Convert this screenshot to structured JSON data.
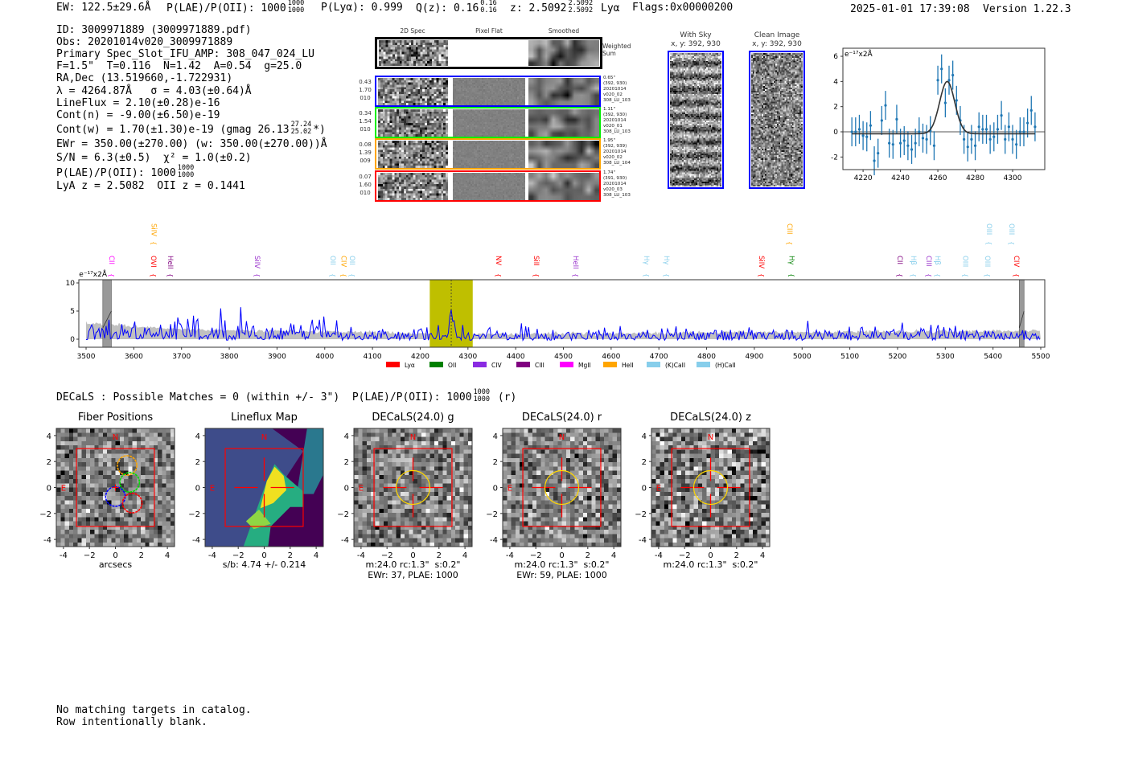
{
  "header": {
    "ew": "EW: 122.5±29.6Å",
    "plae_label": "P(LAE)/P(OII): 1000",
    "plae_hi": "1000",
    "plae_lo": "1000",
    "plya": "P(Lyα): 0.999",
    "qz_label": "Q(z): 0.16",
    "qz_hi": "0.16",
    "qz_lo": "0.16",
    "z_label": "z: 2.5092",
    "z_hi": "2.5092",
    "z_lo": "2.5092",
    "z_line": "Lyα",
    "flags": "Flags:0x00000200",
    "datetime": "2025-01-01 17:39:08",
    "version": "Version 1.22.3"
  },
  "info": {
    "id": "ID: 3009971889 (3009971889.pdf)",
    "obs": "Obs: 20201014v020_3009971889",
    "primary": "Primary Spec_Slot_IFU_AMP: 308_047_024_LU",
    "fiber": "F=1.5\"  T=0.116  N=1.42  A=0.54  g=25.0",
    "radec": "RA,Dec (13.519660,-1.722931)",
    "lambda": "λ = 4264.87Å   σ = 4.03(±0.64)Å",
    "lineflux": "LineFlux = 2.10(±0.28)e-16",
    "contn": "Cont(n) = -9.00(±6.50)e-19",
    "contw": "Cont(w) = 1.70(±1.30)e-19 (gmag 26.13",
    "gmag_hi": "27.24",
    "gmag_lo": "25.02",
    "contw_end": "*)",
    "ewr": "EWr = 350.00(±270.00) (w: 350.00(±270.00))Å",
    "sn": "S/N = 6.3(±0.5)  χ² = 1.0(±0.2)",
    "plae": "P(LAE)/P(OII): 1000",
    "plae_hi": "1000",
    "plae_lo": "1000",
    "z": "LyA z = 2.5082  OII z = 0.1441"
  },
  "spec2d": {
    "col_headers": [
      "2D Spec",
      "Pixel Flat",
      "Smoothed"
    ],
    "weighted_label": "Weighted\nSum",
    "rows": [
      {
        "color": "#0000ff",
        "left": "0.43\n1.70\n010",
        "right": "0.65\"\n(392, 930)\n20201014\nv020_02\n308_LU_103"
      },
      {
        "color": "#00ee00",
        "left": "0.34\n1.54\n010",
        "right": "1.11\"\n(392, 930)\n20201014\nv020_01\n308_LU_103"
      },
      {
        "color": "#ffa500",
        "left": "0.08\n1.39\n009",
        "right": "1.95\"\n(392, 939)\n20201014\nv020_02\n308_LU_104"
      },
      {
        "color": "#ff0000",
        "left": "0.07\n1.60\n010",
        "right": "1.74\"\n(391, 930)\n20201014\nv020_03\n308_LU_103"
      }
    ]
  },
  "cutouts": {
    "with_sky": "With Sky\nx, y: 392, 930",
    "clean": "Clean Image\nx, y: 392, 930"
  },
  "chart_data": [
    {
      "type": "scatter",
      "title": "",
      "unit_label": "e⁻¹⁷x2Å",
      "xlim": [
        4209.2,
        4317.2
      ],
      "ylim": [
        -3.0,
        6.64
      ],
      "xticks": [
        4220,
        4240,
        4260,
        4280,
        4300
      ],
      "yticks": [
        -2,
        0,
        2,
        4,
        6
      ],
      "x": [
        4214,
        4216,
        4218,
        4220,
        4222,
        4224,
        4226,
        4228,
        4230,
        4232,
        4234,
        4236,
        4238,
        4240,
        4242,
        4244,
        4246,
        4248,
        4250,
        4252,
        4254,
        4256,
        4258,
        4260,
        4262,
        4264,
        4266,
        4268,
        4270,
        4272,
        4274,
        4276,
        4278,
        4280,
        4282,
        4284,
        4286,
        4288,
        4290,
        4292,
        4294,
        4296,
        4298,
        4300,
        4302,
        4304,
        4306,
        4308,
        4310,
        4312
      ],
      "y": [
        0,
        0,
        0.2,
        -0.3,
        -0.4,
        0.5,
        -2.3,
        -1.7,
        0.9,
        2.1,
        -0.9,
        -1.0,
        1.0,
        -0.9,
        -0.7,
        -1.1,
        -1.4,
        -0.9,
        0,
        -0.5,
        -0.6,
        0.1,
        -1.1,
        4.1,
        5.0,
        2.3,
        4.1,
        4.5,
        2.5,
        0.9,
        -0.6,
        -1.2,
        -0.6,
        -1.1,
        0.4,
        0.2,
        0.2,
        -0.6,
        -0.4,
        0.2,
        1.3,
        -0.6,
        0.4,
        -0.6,
        -1.0,
        0,
        0,
        0.7,
        1.7,
        0.4
      ],
      "yerr": 1.15,
      "fit": {
        "center": 4265.0,
        "sigma": 4.03,
        "amplitude": 4.15,
        "baseline": -0.15
      }
    },
    {
      "type": "line",
      "unit_label": "e⁻¹⁷x2Å",
      "xlim": [
        3484.8,
        5508.4
      ],
      "ylim": [
        -1.43,
        10.57
      ],
      "xticks": [
        3500,
        3600,
        3700,
        3800,
        3900,
        4000,
        4100,
        4200,
        4300,
        4400,
        4500,
        4600,
        4700,
        4800,
        4900,
        5000,
        5100,
        5200,
        5300,
        5400,
        5500
      ],
      "yticks": [
        0,
        5,
        10
      ],
      "highlight_range": [
        4220,
        4310
      ],
      "line_center": 4265,
      "masked_ranges": [
        [
          3535,
          3553
        ],
        [
          5455,
          5465
        ]
      ],
      "peak": {
        "x": 4265,
        "y": 4.0
      },
      "legend": [
        {
          "label": "Lyα",
          "color": "#ff0000"
        },
        {
          "label": "OII",
          "color": "#008000"
        },
        {
          "label": "CIV",
          "color": "#8a2be2"
        },
        {
          "label": "CIII",
          "color": "#800080"
        },
        {
          "label": "MgII",
          "color": "#ff00ff"
        },
        {
          "label": "HeII",
          "color": "#ffa500"
        },
        {
          "label": "(K)CaII",
          "color": "#87ceeb"
        },
        {
          "label": "(H)CaII",
          "color": "#87ceeb"
        }
      ],
      "line_labels": [
        {
          "text": "CII",
          "wave": 3544,
          "color": "#ff00ff",
          "tier": 0
        },
        {
          "text": "OVI",
          "wave": 3631,
          "color": "#ff0000",
          "tier": 0
        },
        {
          "text": "SiIV",
          "wave": 3632,
          "color": "#ffa500",
          "tier": 1
        },
        {
          "text": "HeII",
          "wave": 3667,
          "color": "#800080",
          "tier": 0
        },
        {
          "text": "SiIV",
          "wave": 3849,
          "color": "#9932cc",
          "tier": 0
        },
        {
          "text": "OII",
          "wave": 4007,
          "color": "#87ceeb",
          "tier": 0
        },
        {
          "text": "CIV",
          "wave": 4030,
          "color": "#ffa500",
          "tier": 0
        },
        {
          "text": "OII",
          "wave": 4043,
          "color": "#87ceeb",
          "tier": 0
        },
        {
          "text": "NV",
          "wave": 4354,
          "color": "#ff0000",
          "tier": 0
        },
        {
          "text": "SiII",
          "wave": 4433,
          "color": "#ff0000",
          "tier": 0
        },
        {
          "text": "HeII",
          "wave": 4516,
          "color": "#9932cc",
          "tier": 0
        },
        {
          "text": "Hγ",
          "wave": 4664,
          "color": "#87ceeb",
          "tier": 0
        },
        {
          "text": "Hγ",
          "wave": 4706,
          "color": "#87ceeb",
          "tier": 0
        },
        {
          "text": "SiIV",
          "wave": 4905,
          "color": "#ff0000",
          "tier": 0
        },
        {
          "text": "CIII",
          "wave": 4964,
          "color": "#ffa500",
          "tier": 1
        },
        {
          "text": "Hγ",
          "wave": 4968,
          "color": "#008000",
          "tier": 0
        },
        {
          "text": "CII",
          "wave": 5195,
          "color": "#800080",
          "tier": 0
        },
        {
          "text": "Hβ",
          "wave": 5224,
          "color": "#87ceeb",
          "tier": 0
        },
        {
          "text": "CIII",
          "wave": 5256,
          "color": "#9932cc",
          "tier": 0
        },
        {
          "text": "Hβ",
          "wave": 5274,
          "color": "#87ceeb",
          "tier": 0
        },
        {
          "text": "OIII",
          "wave": 5332,
          "color": "#87ceeb",
          "tier": 0
        },
        {
          "text": "OIII",
          "wave": 5379,
          "color": "#87ceeb",
          "tier": 0
        },
        {
          "text": "OIII",
          "wave": 5382,
          "color": "#87ceeb",
          "tier": 1
        },
        {
          "text": "OIII",
          "wave": 5429,
          "color": "#87ceeb",
          "tier": 1
        },
        {
          "text": "CIV",
          "wave": 5439,
          "color": "#ff0000",
          "tier": 0
        }
      ]
    }
  ],
  "decals": {
    "line": "DECaLS : Possible Matches = 0 (within +/- 3\")  P(LAE)/P(OII): 1000",
    "hi": "1000",
    "lo": "1000",
    "band": "(r)"
  },
  "panels": [
    {
      "title": "Fiber Positions",
      "caption": "arcsecs",
      "kind": "fiber"
    },
    {
      "title": "Lineflux Map",
      "caption": "s/b: 4.74 +/- 0.214",
      "kind": "flux"
    },
    {
      "title": "DECaLS(24.0) g",
      "caption": "m:24.0 rc:1.3\"  s:0.2\"\nEWr: 37, PLAE: 1000",
      "kind": "img"
    },
    {
      "title": "DECaLS(24.0) r",
      "caption": "m:24.0 rc:1.3\"  s:0.2\"\nEWr: 59, PLAE: 1000",
      "kind": "img"
    },
    {
      "title": "DECaLS(24.0) z",
      "caption": "m:24.0 rc:1.3\"  s:0.2\"",
      "kind": "img"
    }
  ],
  "panel_axes": {
    "ticks": [
      "-4",
      "−2",
      "0",
      "2",
      "4"
    ],
    "north": "N",
    "east": "E"
  },
  "footer": {
    "line1": "No matching targets in catalog.",
    "line2": "Row intentionally blank."
  }
}
